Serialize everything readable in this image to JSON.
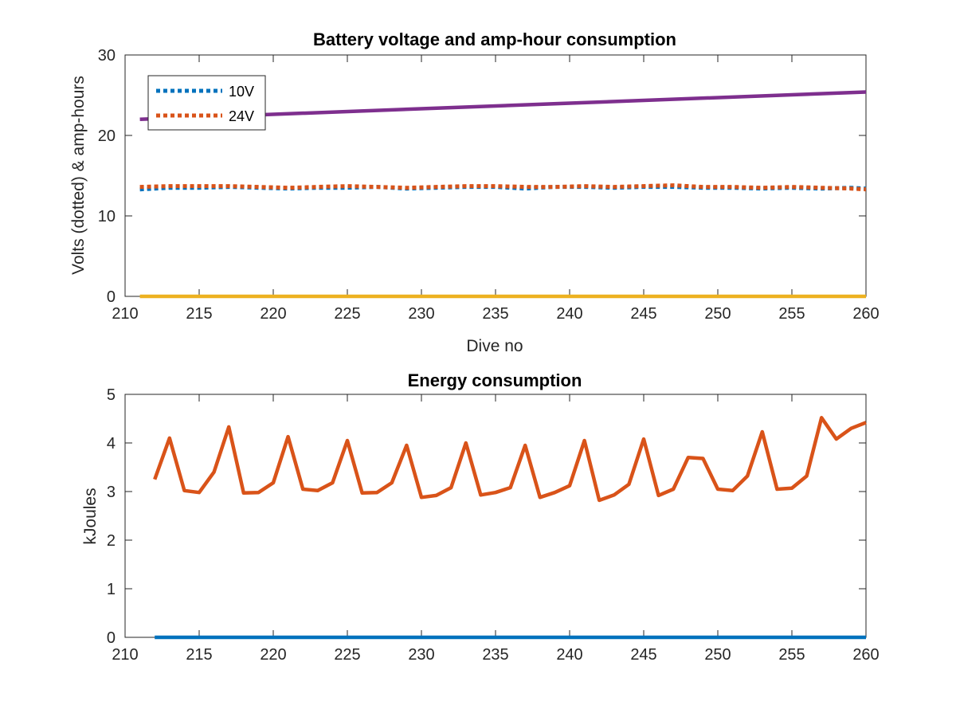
{
  "chart_data": [
    {
      "type": "line",
      "title": "Battery voltage and amp-hour consumption",
      "xlabel": "Dive no",
      "ylabel": "Volts (dotted) & amp-hours",
      "xlim": [
        210,
        260
      ],
      "ylim": [
        0,
        30
      ],
      "xticks": [
        210,
        215,
        220,
        225,
        230,
        235,
        240,
        245,
        250,
        255,
        260
      ],
      "yticks": [
        0,
        10,
        20,
        30
      ],
      "grid": false,
      "legend": {
        "placement": "top-left",
        "entries": [
          "10V",
          "24V"
        ]
      },
      "series": [
        {
          "name": "10V",
          "style": "dotted",
          "color": "#0072BD",
          "x": [
            211,
            213,
            215,
            217,
            219,
            221,
            223,
            225,
            227,
            229,
            231,
            233,
            235,
            237,
            239,
            241,
            243,
            245,
            247,
            249,
            251,
            253,
            255,
            257,
            259,
            260
          ],
          "y": [
            13.3,
            13.5,
            13.5,
            13.6,
            13.5,
            13.4,
            13.5,
            13.5,
            13.6,
            13.4,
            13.5,
            13.6,
            13.6,
            13.4,
            13.6,
            13.6,
            13.5,
            13.6,
            13.6,
            13.5,
            13.5,
            13.4,
            13.5,
            13.4,
            13.5,
            13.4
          ]
        },
        {
          "name": "24V",
          "style": "dotted",
          "color": "#D95319",
          "x": [
            211,
            213,
            215,
            217,
            219,
            221,
            223,
            225,
            227,
            229,
            231,
            233,
            235,
            237,
            239,
            241,
            243,
            245,
            247,
            249,
            251,
            253,
            255,
            257,
            259,
            260
          ],
          "y": [
            13.6,
            13.7,
            13.7,
            13.7,
            13.6,
            13.5,
            13.6,
            13.7,
            13.6,
            13.5,
            13.6,
            13.7,
            13.7,
            13.6,
            13.6,
            13.7,
            13.6,
            13.7,
            13.8,
            13.6,
            13.6,
            13.5,
            13.6,
            13.5,
            13.4,
            13.3
          ]
        },
        {
          "style": "solid",
          "color": "#7E2F8E",
          "x": [
            211,
            260
          ],
          "y": [
            22.0,
            25.4
          ]
        },
        {
          "style": "solid",
          "color": "#EDB120",
          "x": [
            211,
            260
          ],
          "y": [
            0,
            0
          ]
        }
      ]
    },
    {
      "type": "line",
      "title": "Energy consumption",
      "xlabel": "",
      "ylabel": "kJoules",
      "xlim": [
        210,
        260
      ],
      "ylim": [
        0,
        5
      ],
      "xticks": [
        210,
        215,
        220,
        225,
        230,
        235,
        240,
        245,
        250,
        255,
        260
      ],
      "yticks": [
        0,
        1,
        2,
        3,
        4,
        5
      ],
      "grid": false,
      "series": [
        {
          "style": "solid",
          "color": "#D95319",
          "x": [
            212,
            213,
            214,
            215,
            216,
            217,
            218,
            219,
            220,
            221,
            222,
            223,
            224,
            225,
            226,
            227,
            228,
            229,
            230,
            231,
            232,
            233,
            234,
            235,
            236,
            237,
            238,
            239,
            240,
            241,
            242,
            243,
            244,
            245,
            246,
            247,
            248,
            249,
            250,
            251,
            252,
            253,
            254,
            255,
            256,
            257,
            258,
            259,
            260
          ],
          "y": [
            3.25,
            4.1,
            3.02,
            2.98,
            3.4,
            4.33,
            2.97,
            2.98,
            3.18,
            4.13,
            3.05,
            3.02,
            3.18,
            4.05,
            2.97,
            2.98,
            3.18,
            3.95,
            2.88,
            2.92,
            3.08,
            4.0,
            2.93,
            2.98,
            3.08,
            3.95,
            2.88,
            2.98,
            3.12,
            4.05,
            2.82,
            2.93,
            3.15,
            4.08,
            2.92,
            3.05,
            3.7,
            3.68,
            3.05,
            3.02,
            3.32,
            4.23,
            3.05,
            3.07,
            3.32,
            4.52,
            4.08,
            4.3,
            4.42
          ]
        },
        {
          "style": "solid",
          "color": "#0072BD",
          "x": [
            212,
            260
          ],
          "y": [
            0,
            0
          ]
        }
      ]
    }
  ]
}
